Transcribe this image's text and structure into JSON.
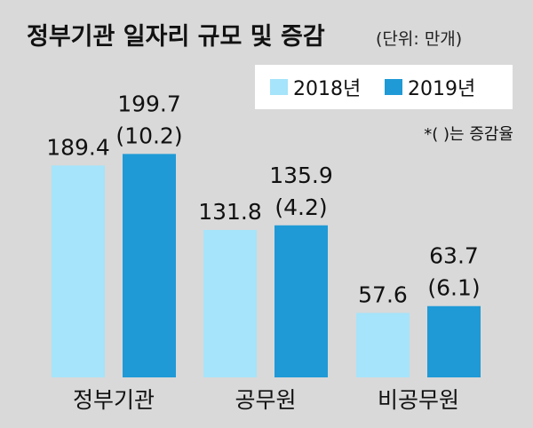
{
  "chart_data": {
    "type": "bar",
    "title": "정부기관 일자리 규모 및 증감",
    "unit_label": "(단위: 만개)",
    "note": "*( )는 증감율",
    "categories": [
      "정부기관",
      "공무원",
      "비공무원"
    ],
    "series": [
      {
        "name": "2018년",
        "values": [
          189.4,
          131.8,
          57.6
        ],
        "labels": [
          "189.4",
          "131.8",
          "57.6"
        ],
        "color": "#a5e4fa"
      },
      {
        "name": "2019년",
        "values": [
          199.7,
          135.9,
          63.7
        ],
        "labels": [
          "199.7",
          "135.9",
          "63.7"
        ],
        "change_labels": [
          "(10.2)",
          "(4.2)",
          "(6.1)"
        ],
        "color": "#1f9ad6"
      }
    ],
    "ylim": [
      0,
      200
    ],
    "legend": "top-right",
    "grid": false
  }
}
